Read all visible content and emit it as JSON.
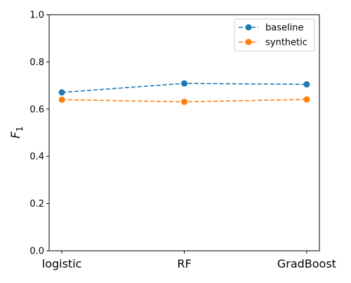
{
  "chart_data": {
    "type": "line",
    "title": "",
    "xlabel": "",
    "ylabel": "F_1",
    "ylabel_display": {
      "main": "F",
      "sub": "1"
    },
    "categories": [
      "logistic",
      "RF",
      "GradBoost"
    ],
    "ylim": [
      0.0,
      1.0
    ],
    "yticks": [
      0.0,
      0.2,
      0.4,
      0.6,
      0.8,
      1.0
    ],
    "ytick_labels": [
      "0.0",
      "0.2",
      "0.4",
      "0.6",
      "0.8",
      "1.0"
    ],
    "grid": false,
    "legend_position": "top-right",
    "series": [
      {
        "name": "baseline",
        "values": [
          0.671,
          0.709,
          0.705
        ],
        "color": "#1f77b4",
        "linestyle": "dashed",
        "marker": "circle"
      },
      {
        "name": "synthetic",
        "values": [
          0.64,
          0.631,
          0.641
        ],
        "color": "#ff7f0e",
        "linestyle": "dashed",
        "marker": "circle"
      }
    ]
  }
}
